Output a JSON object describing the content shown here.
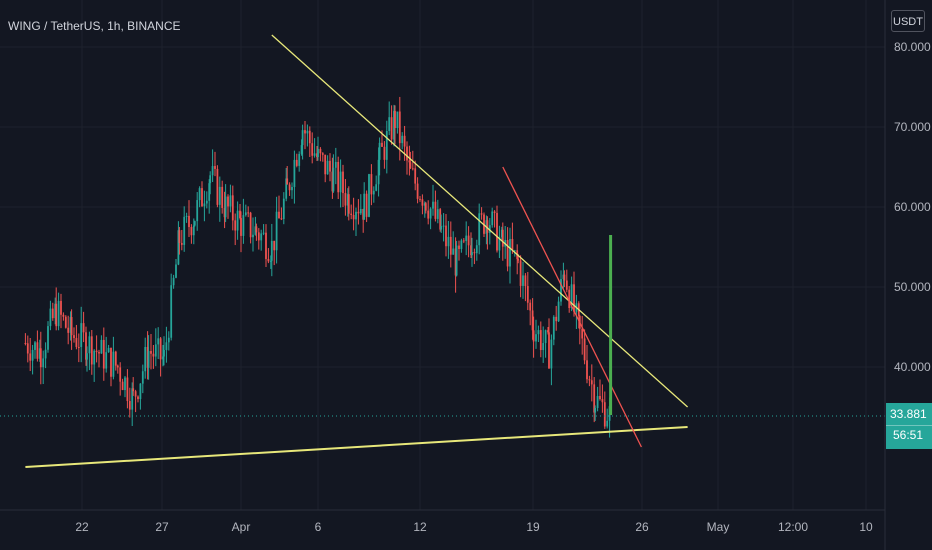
{
  "header": {
    "symbol": "WING / TetherUS, 1h, BINANCE",
    "currency_button": "USDT"
  },
  "price_badge": {
    "price": "33.881",
    "countdown": "56:51"
  },
  "colors": {
    "background": "#131722",
    "up_candle": "#26a69a",
    "down_candle": "#ef5350",
    "support_line": "#e8e87a",
    "resistance_line": "#e8e87a",
    "steep_trendline": "#ef5350",
    "target_marker": "#4caf50",
    "grid": "#1e222d",
    "axis_text": "#b2b5be"
  },
  "chart_data": {
    "type": "candlestick",
    "symbol": "WING / TetherUS",
    "interval": "1h",
    "exchange": "BINANCE",
    "ylim": [
      27,
      83
    ],
    "yticks": [
      "80.000",
      "70.000",
      "60.000",
      "50.000",
      "40.000"
    ],
    "xticks": [
      "22",
      "27",
      "Apr",
      "6",
      "12",
      "19",
      "26",
      "May",
      "12:00",
      "10"
    ],
    "last_price": 33.881,
    "countdown": "56:51",
    "price_path": [
      {
        "date": "Mar 18",
        "price": 43
      },
      {
        "date": "Mar 19",
        "price": 42
      },
      {
        "date": "Mar 20",
        "price": 47
      },
      {
        "date": "Mar 21",
        "price": 44
      },
      {
        "date": "Mar 22",
        "price": 43
      },
      {
        "date": "Mar 24",
        "price": 40
      },
      {
        "date": "Mar 25",
        "price": 36
      },
      {
        "date": "Mar 26",
        "price": 42
      },
      {
        "date": "Mar 27",
        "price": 41
      },
      {
        "date": "Mar 28",
        "price": 56
      },
      {
        "date": "Mar 29",
        "price": 59
      },
      {
        "date": "Mar 30",
        "price": 64
      },
      {
        "date": "Mar 31",
        "price": 60
      },
      {
        "date": "Apr 1",
        "price": 58
      },
      {
        "date": "Apr 2",
        "price": 57
      },
      {
        "date": "Apr 3",
        "price": 55
      },
      {
        "date": "Apr 4",
        "price": 62
      },
      {
        "date": "Apr 5",
        "price": 70
      },
      {
        "date": "Apr 6",
        "price": 66
      },
      {
        "date": "Apr 7",
        "price": 64
      },
      {
        "date": "Apr 8",
        "price": 61
      },
      {
        "date": "Apr 9",
        "price": 60
      },
      {
        "date": "Apr 10",
        "price": 66
      },
      {
        "date": "Apr 11",
        "price": 71
      },
      {
        "date": "Apr 12",
        "price": 64
      },
      {
        "date": "Apr 13",
        "price": 61
      },
      {
        "date": "Apr 14",
        "price": 57
      },
      {
        "date": "Apr 15",
        "price": 53
      },
      {
        "date": "Apr 16",
        "price": 56
      },
      {
        "date": "Apr 17",
        "price": 59
      },
      {
        "date": "Apr 18",
        "price": 55
      },
      {
        "date": "Apr 19",
        "price": 53
      },
      {
        "date": "Apr 20",
        "price": 45
      },
      {
        "date": "Apr 21",
        "price": 42
      },
      {
        "date": "Apr 22",
        "price": 52
      },
      {
        "date": "Apr 23",
        "price": 44
      },
      {
        "date": "Apr 24",
        "price": 36
      },
      {
        "date": "Apr 25",
        "price": 33.9
      }
    ],
    "drawings": [
      {
        "name": "descending-resistance",
        "color": "#e8e87a",
        "from": {
          "date": "Apr 3",
          "price": 81.5
        },
        "to": {
          "date": "Apr 30",
          "price": 35
        }
      },
      {
        "name": "ascending-support",
        "color": "#e8e87a",
        "from": {
          "date": "Mar 18",
          "price": 27.5
        },
        "to": {
          "date": "Apr 30",
          "price": 32.5
        }
      },
      {
        "name": "steep-trendline",
        "color": "#ef5350",
        "from": {
          "date": "Apr 18",
          "price": 65
        },
        "to": {
          "date": "Apr 27",
          "price": 30
        }
      },
      {
        "name": "target-bar",
        "color": "#4caf50",
        "from": {
          "date": "Apr 25",
          "price": 56.5
        },
        "to": {
          "date": "Apr 25",
          "price": 34
        }
      }
    ]
  }
}
